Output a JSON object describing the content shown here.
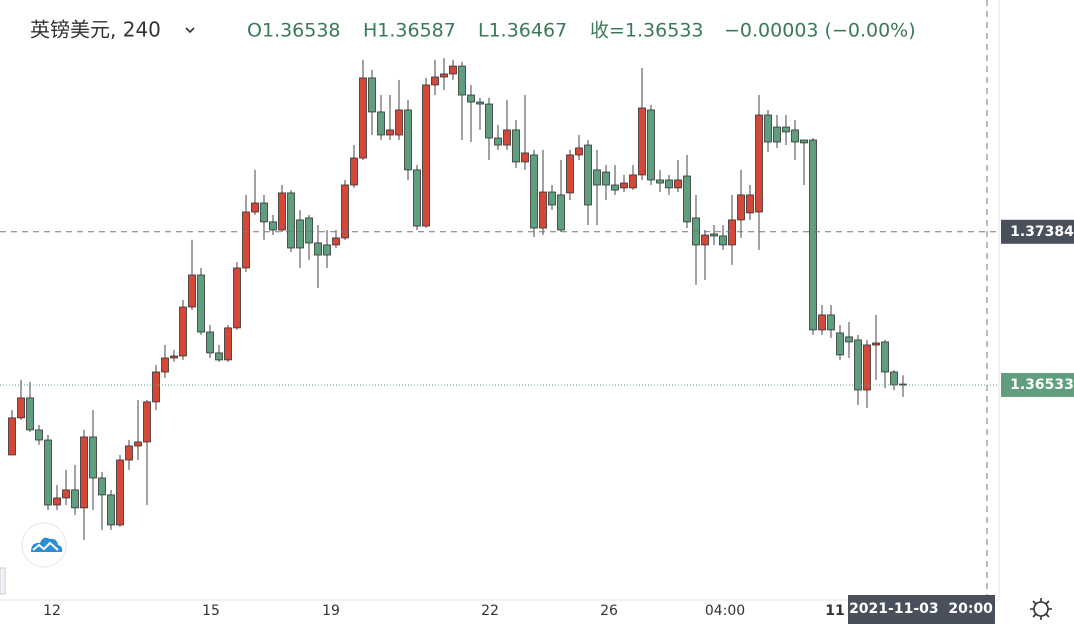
{
  "chart_data": {
    "type": "candlestick",
    "title": "英镑美元, 240",
    "ohlc_labels": [
      "O1.36538",
      "H1.36587",
      "L1.36467",
      "收=1.36533",
      "−0.00003 (−0.00%)"
    ],
    "crosshair_price": 1.37384,
    "last_price": 1.36533,
    "crosshair_time": "2021-11-03  20:00",
    "x_labels": [
      "12",
      "15",
      "19",
      "22",
      "26",
      "04:00",
      "11"
    ],
    "up_color": "#d4483a",
    "down_color": "#5f9f7e",
    "ylim": [
      1.35338,
      1.38672
    ],
    "open": [
      1.36144,
      1.3635,
      1.36461,
      1.36283,
      1.36227,
      1.35866,
      1.35905,
      1.3595,
      1.3585,
      1.36244,
      1.36016,
      1.35922,
      1.35755,
      1.36116,
      1.36194,
      1.36216,
      1.36439,
      1.36605,
      1.36683,
      1.36694,
      1.36966,
      1.37144,
      1.36827,
      1.36711,
      1.36672,
      1.3685,
      1.37183,
      1.37494,
      1.37544,
      1.37439,
      1.37394,
      1.376,
      1.3745,
      1.37461,
      1.37322,
      1.37311,
      1.37311,
      1.3735,
      1.37644,
      1.37794,
      1.38239,
      1.3805,
      1.37922,
      1.37922,
      1.38061,
      1.37728,
      1.37416,
      1.382,
      1.38244,
      1.38261,
      1.38305,
      1.38144,
      1.38105,
      1.38094,
      1.37905,
      1.37866,
      1.3795,
      1.37772,
      1.37811,
      1.37405,
      1.37605,
      1.37589,
      1.376,
      1.37811,
      1.37866,
      1.37728,
      1.37716,
      1.37644,
      1.37628,
      1.37628,
      1.377,
      1.38061,
      1.37672,
      1.37672,
      1.37628,
      1.37694,
      1.37461,
      1.37311,
      1.37372,
      1.37361,
      1.37311,
      1.3745,
      1.37489,
      1.37494,
      1.38033,
      1.37966,
      1.37966,
      1.3795,
      1.37894,
      1.37894,
      1.36839,
      1.36922,
      1.36822,
      1.368,
      1.36783,
      1.36505,
      1.36755,
      1.36772,
      1.36605,
      1.36538
    ],
    "high": [
      1.36394,
      1.36561,
      1.3655,
      1.36311,
      1.36255,
      1.35977,
      1.36061,
      1.36089,
      1.36283,
      1.36394,
      1.3605,
      1.3595,
      1.36144,
      1.36227,
      1.3645,
      1.3645,
      1.36644,
      1.36755,
      1.36727,
      1.37005,
      1.37339,
      1.37183,
      1.36866,
      1.36755,
      1.36866,
      1.37216,
      1.37589,
      1.37728,
      1.37589,
      1.37478,
      1.37644,
      1.37616,
      1.37505,
      1.37478,
      1.37422,
      1.37394,
      1.37394,
      1.37672,
      1.37866,
      1.38339,
      1.38283,
      1.38144,
      1.38144,
      1.38228,
      1.38116,
      1.37755,
      1.38239,
      1.38339,
      1.3835,
      1.38339,
      1.38328,
      1.382,
      1.38128,
      1.38128,
      1.37978,
      1.38116,
      1.38005,
      1.38144,
      1.37839,
      1.37839,
      1.37644,
      1.37783,
      1.37839,
      1.37922,
      1.37894,
      1.37839,
      1.37755,
      1.37755,
      1.377,
      1.37755,
      1.38294,
      1.38089,
      1.37728,
      1.377,
      1.37783,
      1.37811,
      1.37589,
      1.37394,
      1.37422,
      1.37422,
      1.37589,
      1.37728,
      1.37644,
      1.38144,
      1.38061,
      1.38033,
      1.38033,
      1.38005,
      1.37894,
      1.37905,
      1.36977,
      1.36977,
      1.36866,
      1.36883,
      1.36811,
      1.36783,
      1.36922,
      1.36783,
      1.36616,
      1.36587
    ],
    "low": [
      1.36144,
      1.36339,
      1.36272,
      1.362,
      1.35838,
      1.35838,
      1.35866,
      1.35811,
      1.35672,
      1.35838,
      1.35727,
      1.35727,
      1.35744,
      1.36061,
      1.36116,
      1.35866,
      1.36394,
      1.36572,
      1.36661,
      1.36672,
      1.3695,
      1.36811,
      1.36683,
      1.36661,
      1.36661,
      1.36839,
      1.37161,
      1.37478,
      1.37339,
      1.37366,
      1.37383,
      1.37272,
      1.37183,
      1.37228,
      1.37072,
      1.37183,
      1.37294,
      1.37339,
      1.37628,
      1.37783,
      1.37922,
      1.37894,
      1.37894,
      1.37894,
      1.37672,
      1.37394,
      1.37405,
      1.38144,
      1.38172,
      1.38228,
      1.37894,
      1.37883,
      1.3795,
      1.37783,
      1.37839,
      1.37839,
      1.37739,
      1.37728,
      1.37355,
      1.37366,
      1.37505,
      1.37383,
      1.37561,
      1.37783,
      1.37422,
      1.37422,
      1.37561,
      1.37589,
      1.37605,
      1.37616,
      1.37672,
      1.37644,
      1.37605,
      1.37589,
      1.37605,
      1.37405,
      1.37089,
      1.37116,
      1.37311,
      1.37283,
      1.372,
      1.3735,
      1.3745,
      1.37283,
      1.37828,
      1.3785,
      1.37866,
      1.37783,
      1.37644,
      1.36811,
      1.36811,
      1.36794,
      1.36672,
      1.36683,
      1.36422,
      1.36405,
      1.36561,
      1.36516,
      1.36505,
      1.36467
    ],
    "close": [
      1.3635,
      1.36461,
      1.36283,
      1.36227,
      1.35866,
      1.35905,
      1.3595,
      1.3585,
      1.36244,
      1.36016,
      1.35922,
      1.35755,
      1.36116,
      1.36194,
      1.36216,
      1.36439,
      1.36605,
      1.36683,
      1.36694,
      1.36966,
      1.37144,
      1.36827,
      1.36711,
      1.36672,
      1.3685,
      1.37183,
      1.37494,
      1.37544,
      1.37439,
      1.37394,
      1.376,
      1.37294,
      1.37294,
      1.37322,
      1.37255,
      1.37255,
      1.3735,
      1.37644,
      1.37794,
      1.38239,
      1.3805,
      1.37922,
      1.3795,
      1.38061,
      1.37728,
      1.37416,
      1.382,
      1.38244,
      1.38261,
      1.38305,
      1.38144,
      1.38105,
      1.38094,
      1.37905,
      1.37866,
      1.3795,
      1.37772,
      1.37822,
      1.37405,
      1.37605,
      1.37533,
      1.37394,
      1.37811,
      1.3785,
      1.37533,
      1.37644,
      1.37644,
      1.37616,
      1.37655,
      1.377,
      1.38072,
      1.37672,
      1.37655,
      1.37628,
      1.37672,
      1.37439,
      1.37311,
      1.37366,
      1.37361,
      1.37311,
      1.3745,
      1.37589,
      1.37589,
      1.38033,
      1.37883,
      1.37883,
      1.37939,
      1.37883,
      1.37878,
      1.36839,
      1.36922,
      1.36839,
      1.367,
      1.36772,
      1.36505,
      1.36755,
      1.36766,
      1.36605,
      1.36533,
      1.36533
    ]
  }
}
